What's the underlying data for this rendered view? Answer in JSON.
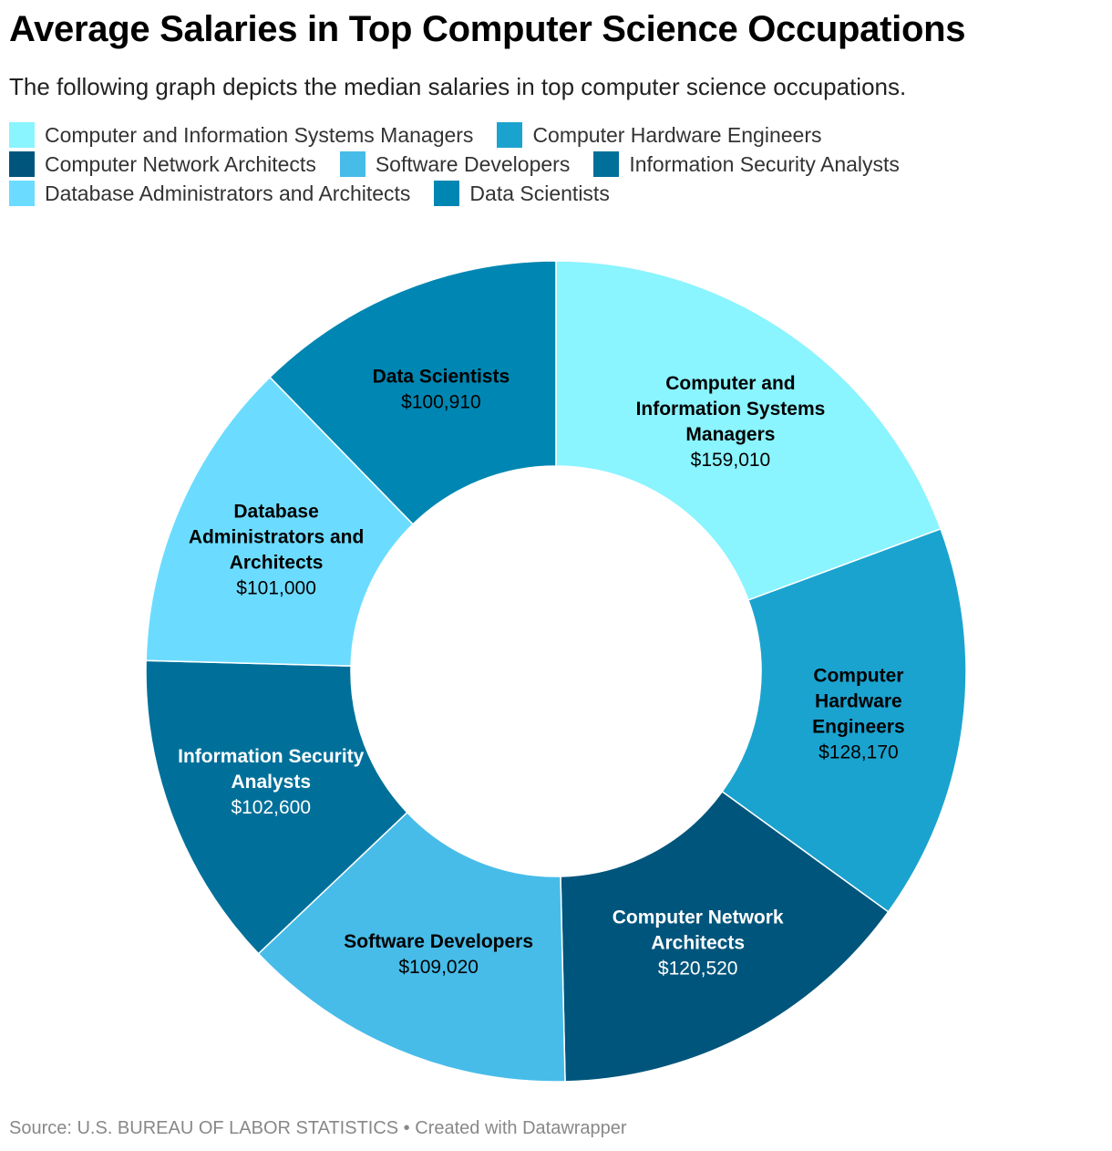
{
  "header": {
    "title": "Average Salaries in Top Computer Science Occupations",
    "subtitle": "The following graph depicts the median salaries in top computer science occupations."
  },
  "legend": {
    "rows": [
      [
        0,
        1
      ],
      [
        2,
        3,
        4
      ],
      [
        5,
        6
      ]
    ]
  },
  "chart_data": {
    "type": "pie",
    "donut": true,
    "legend_position": "top-left",
    "categories": [
      "Computer and Information Systems Managers",
      "Computer Hardware Engineers",
      "Computer Network Architects",
      "Software Developers",
      "Information Security Analysts",
      "Database Administrators and Architects",
      "Data Scientists"
    ],
    "values": [
      159010,
      128170,
      120520,
      109020,
      102600,
      101000,
      100910
    ],
    "value_labels": [
      "$159,010",
      "$128,170",
      "$120,520",
      "$109,020",
      "$102,600",
      "$101,000",
      "$100,910"
    ],
    "slice_label_lines": [
      [
        "Computer and",
        "Information Systems",
        "Managers"
      ],
      [
        "Computer",
        "Hardware",
        "Engineers"
      ],
      [
        "Computer Network",
        "Architects"
      ],
      [
        "Software Developers"
      ],
      [
        "Information Security",
        "Analysts"
      ],
      [
        "Database",
        "Administrators and",
        "Architects"
      ],
      [
        "Data Scientists"
      ]
    ],
    "colors": [
      "#8af4ff",
      "#1ba3cf",
      "#00557c",
      "#47bce8",
      "#00709a",
      "#6bdcff",
      "#0086b2"
    ],
    "label_colors": [
      "#000000",
      "#000000",
      "#ffffff",
      "#000000",
      "#ffffff",
      "#000000",
      "#000000"
    ]
  },
  "footer": {
    "source": "Source: U.S. BUREAU OF LABOR STATISTICS • Created with Datawrapper"
  }
}
